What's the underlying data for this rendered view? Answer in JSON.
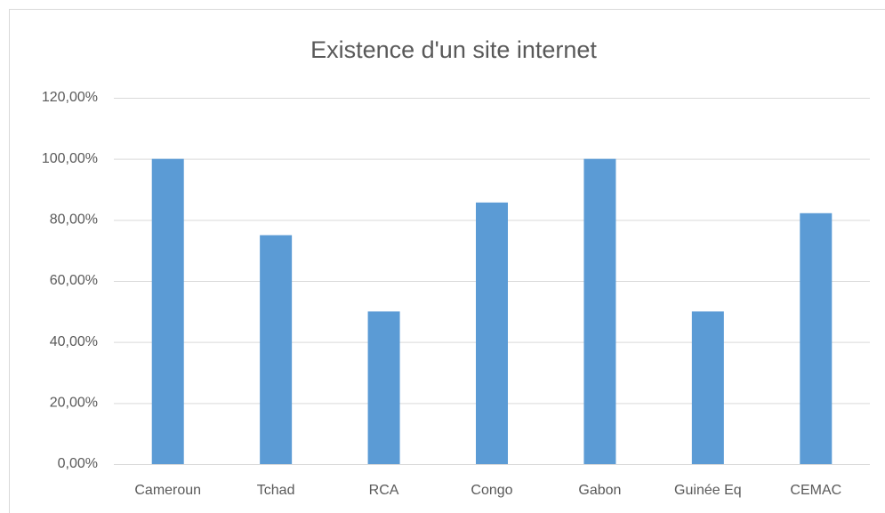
{
  "chart_data": {
    "type": "bar",
    "title": "Existence d'un site internet",
    "categories": [
      "Cameroun",
      "Tchad",
      "RCA",
      "Congo",
      "Gabon",
      "Guinée Eq",
      "CEMAC"
    ],
    "values": [
      100,
      75,
      50,
      85.7,
      100,
      50,
      82.2
    ],
    "color": "#5b9bd5",
    "ylim": [
      0,
      120
    ],
    "yticks": [
      {
        "value": 0,
        "label": "0,00%"
      },
      {
        "value": 20,
        "label": "20,00%"
      },
      {
        "value": 40,
        "label": "40,00%"
      },
      {
        "value": 60,
        "label": "60,00%"
      },
      {
        "value": 80,
        "label": "80,00%"
      },
      {
        "value": 100,
        "label": "100,00%"
      },
      {
        "value": 120,
        "label": "120,00%"
      }
    ],
    "grid": true
  }
}
